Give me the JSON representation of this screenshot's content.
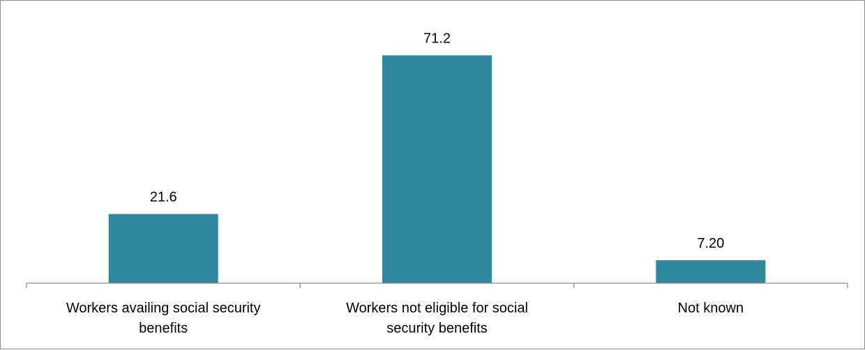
{
  "chart_data": {
    "type": "bar",
    "title": "",
    "xlabel": "",
    "ylabel": "",
    "categories": [
      [
        "Workers availing social security",
        "benefits"
      ],
      [
        "Workers not eligible for social",
        "security benefits"
      ],
      [
        "Not known"
      ]
    ],
    "values": [
      21.6,
      71.2,
      7.2
    ],
    "value_labels": [
      "21.6",
      "71.2",
      "7.20"
    ],
    "ylim": [
      0,
      80
    ],
    "grid": false,
    "legend": "none",
    "bar_color": "#31889e",
    "axis_color": "#8c8c8c"
  }
}
